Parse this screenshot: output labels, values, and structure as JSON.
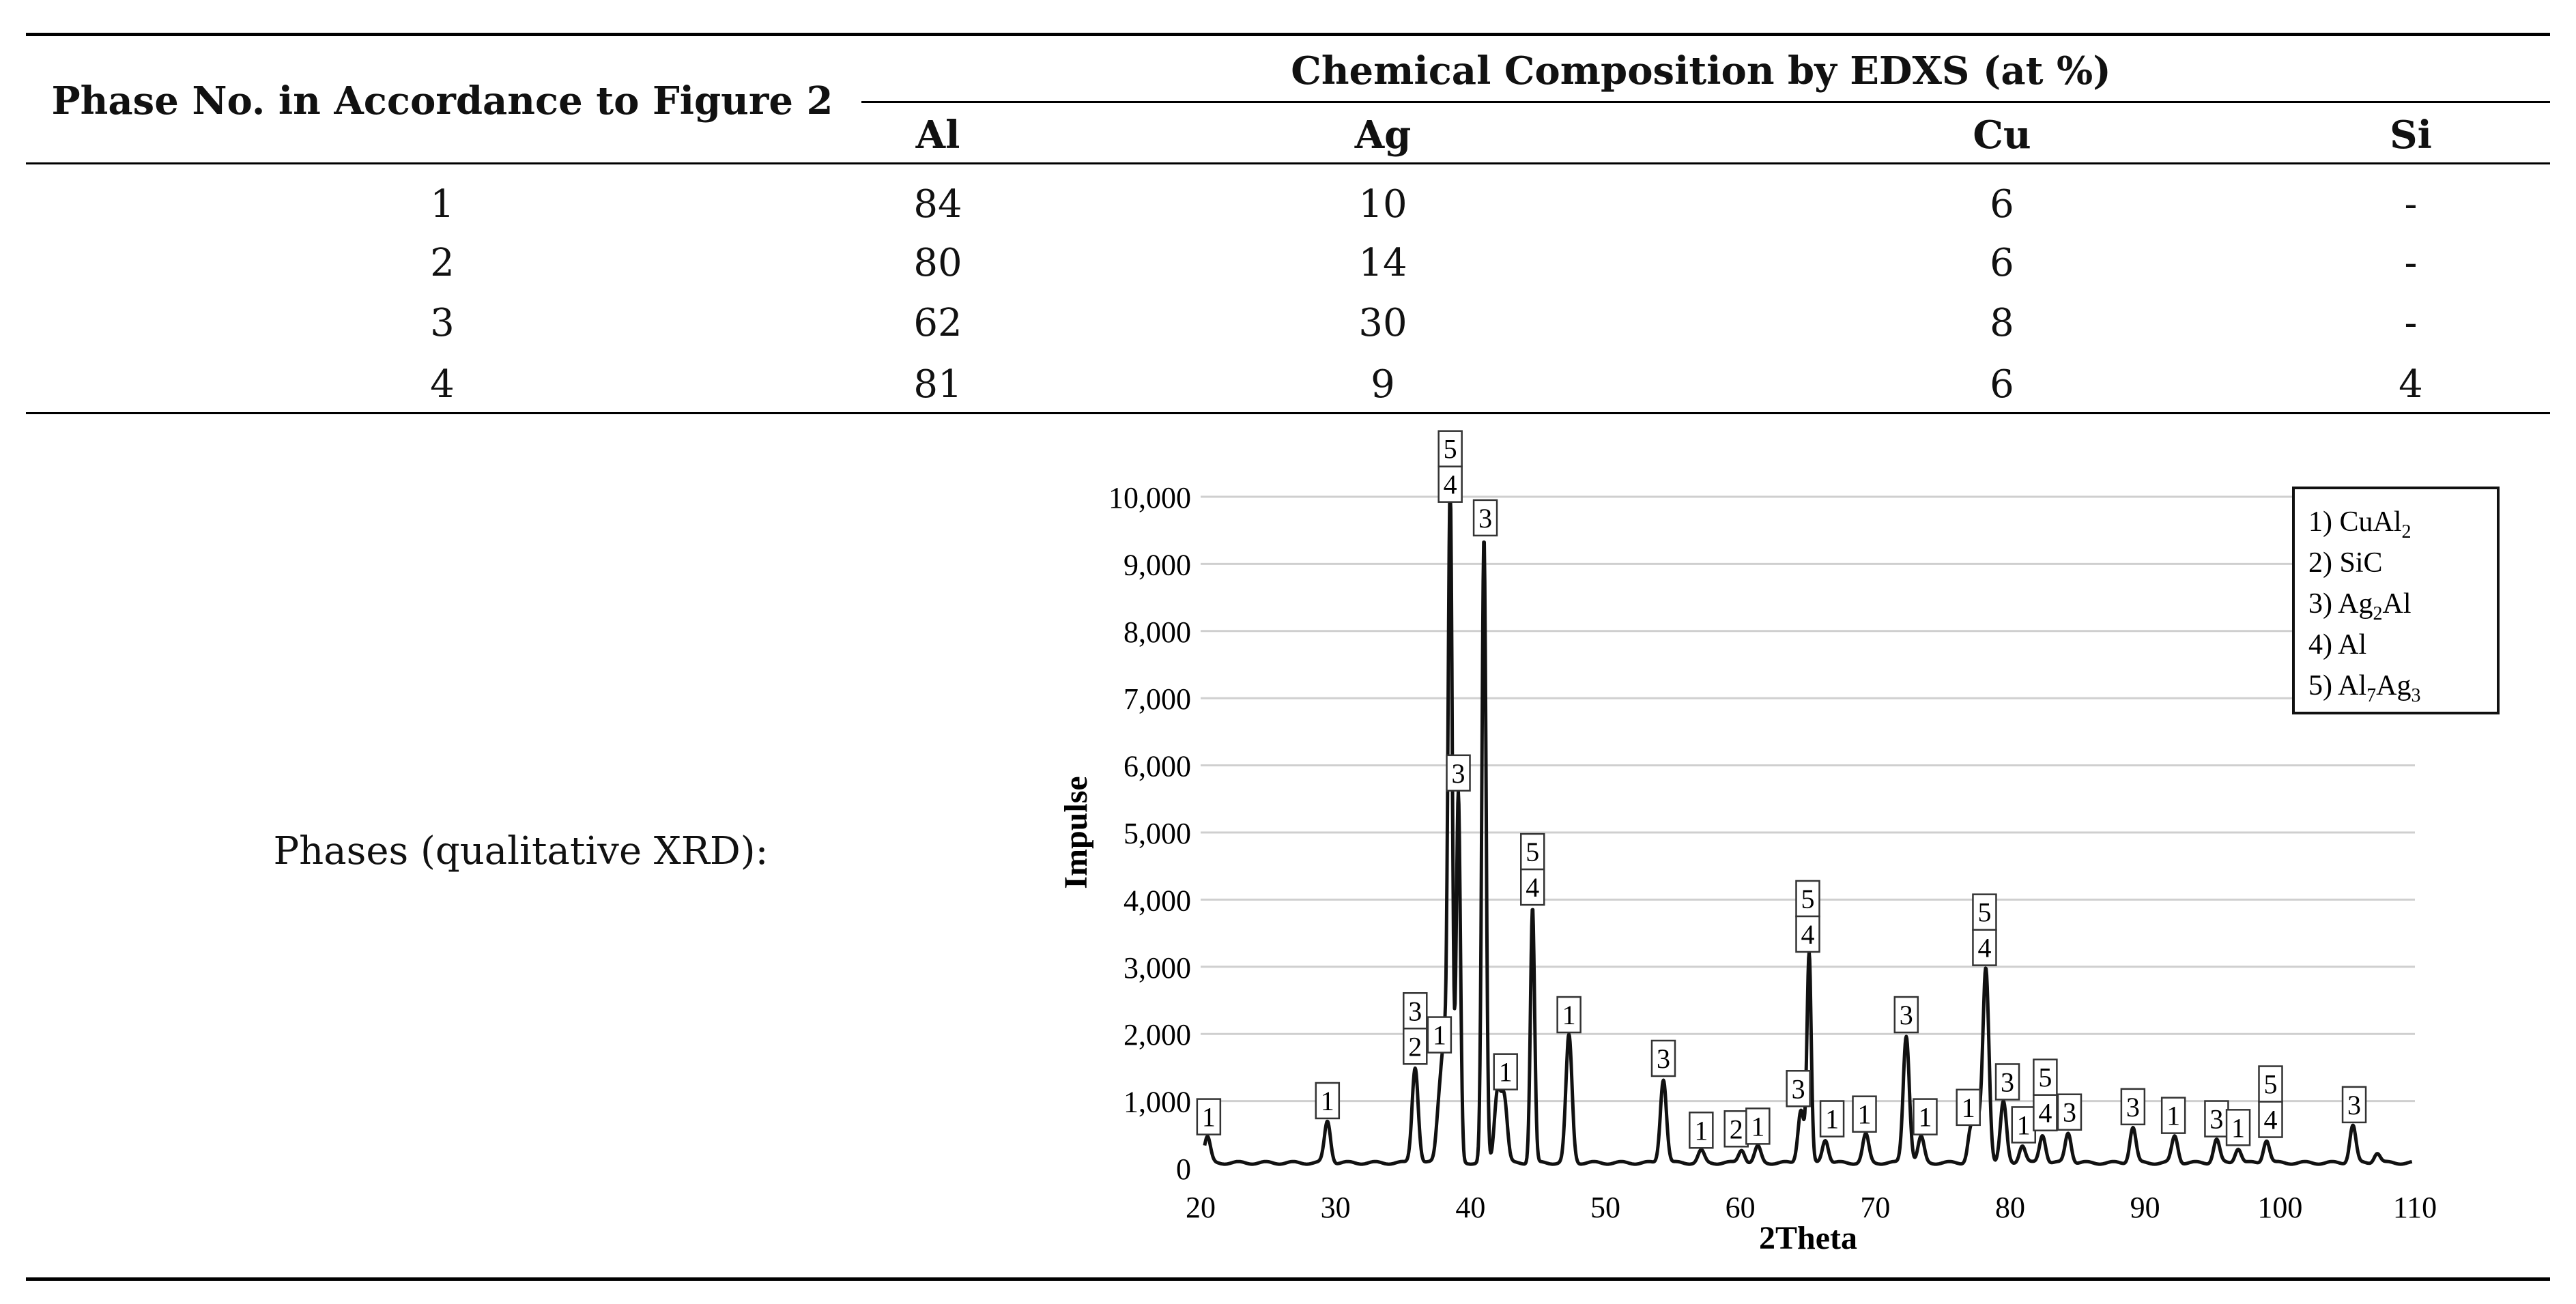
{
  "table": {
    "row_header": "Phase No. in Accordance to Figure 2",
    "group_header": "Chemical Composition by EDXS (at %)",
    "columns": [
      "Al",
      "Ag",
      "Cu",
      "Si"
    ],
    "rows": [
      {
        "phase": "1",
        "al": "84",
        "ag": "10",
        "cu": "6",
        "si": "-"
      },
      {
        "phase": "2",
        "al": "80",
        "ag": "14",
        "cu": "6",
        "si": "-"
      },
      {
        "phase": "3",
        "al": "62",
        "ag": "30",
        "cu": "8",
        "si": "-"
      },
      {
        "phase": "4",
        "al": "81",
        "ag": "9",
        "cu": "6",
        "si": "4"
      }
    ],
    "phases_label": "Phases (qualitative XRD):"
  },
  "chart_data": {
    "type": "line",
    "xlabel": "2Theta",
    "ylabel": "Impulse",
    "xlim": [
      20,
      110
    ],
    "ylim": [
      0,
      10000
    ],
    "x_ticks": [
      "20",
      "30",
      "40",
      "50",
      "60",
      "70",
      "80",
      "90",
      "100",
      "110"
    ],
    "y_ticks": [
      "0",
      "1,000",
      "2,000",
      "3,000",
      "4,000",
      "5,000",
      "6,000",
      "7,000",
      "8,000",
      "9,000",
      "10,000"
    ],
    "grid": "horizontal",
    "legend_position": "top-right",
    "legend": [
      {
        "num": "1)",
        "base": "CuAl",
        "sub": "2",
        "tail": ""
      },
      {
        "num": "2)",
        "base": "SiC",
        "sub": "",
        "tail": ""
      },
      {
        "num": "3)",
        "base": "Ag",
        "sub": "2",
        "tail": "Al"
      },
      {
        "num": "4)",
        "base": "Al",
        "sub": "",
        "tail": ""
      },
      {
        "num": "5)",
        "base": "Al",
        "sub": "7",
        "tail": "Ag",
        "sub2": "3"
      }
    ],
    "baseline": 80,
    "peaks": [
      {
        "x": 20.5,
        "y": 380
      },
      {
        "x": 29.4,
        "y": 620
      },
      {
        "x": 35.9,
        "y": 1430
      },
      {
        "x": 37.7,
        "y": 820
      },
      {
        "x": 38.1,
        "y": 1600
      },
      {
        "x": 38.5,
        "y": 9800
      },
      {
        "x": 39.1,
        "y": 5500
      },
      {
        "x": 41.0,
        "y": 9300
      },
      {
        "x": 42.0,
        "y": 1050
      },
      {
        "x": 42.5,
        "y": 950
      },
      {
        "x": 44.6,
        "y": 3800
      },
      {
        "x": 47.3,
        "y": 1900
      },
      {
        "x": 54.3,
        "y": 1250
      },
      {
        "x": 57.1,
        "y": 180
      },
      {
        "x": 60.1,
        "y": 200
      },
      {
        "x": 61.3,
        "y": 240
      },
      {
        "x": 64.5,
        "y": 800
      },
      {
        "x": 65.1,
        "y": 3100
      },
      {
        "x": 66.3,
        "y": 350
      },
      {
        "x": 69.3,
        "y": 420
      },
      {
        "x": 72.3,
        "y": 1900
      },
      {
        "x": 73.4,
        "y": 380
      },
      {
        "x": 77.1,
        "y": 520
      },
      {
        "x": 77.6,
        "y": 520
      },
      {
        "x": 78.2,
        "y": 2900
      },
      {
        "x": 79.5,
        "y": 900
      },
      {
        "x": 80.9,
        "y": 260
      },
      {
        "x": 82.4,
        "y": 420
      },
      {
        "x": 84.3,
        "y": 450
      },
      {
        "x": 89.1,
        "y": 530
      },
      {
        "x": 92.2,
        "y": 400
      },
      {
        "x": 95.3,
        "y": 350
      },
      {
        "x": 96.9,
        "y": 220
      },
      {
        "x": 99.0,
        "y": 340
      },
      {
        "x": 105.4,
        "y": 560
      },
      {
        "x": 107.2,
        "y": 150
      }
    ],
    "annotations": [
      {
        "x": 20.6,
        "y": 380,
        "labels": [
          "1"
        ]
      },
      {
        "x": 29.4,
        "y": 620,
        "labels": [
          "1"
        ]
      },
      {
        "x": 35.9,
        "y": 1430,
        "labels": [
          "3",
          "2"
        ]
      },
      {
        "x": 37.7,
        "y": 1600,
        "labels": [
          "1"
        ]
      },
      {
        "x": 38.5,
        "y": 9800,
        "labels": [
          "5",
          "4"
        ]
      },
      {
        "x": 39.1,
        "y": 5500,
        "labels": [
          "3"
        ]
      },
      {
        "x": 41.1,
        "y": 9300,
        "labels": [
          "3"
        ]
      },
      {
        "x": 42.6,
        "y": 1050,
        "labels": [
          "1"
        ]
      },
      {
        "x": 44.6,
        "y": 3800,
        "labels": [
          "5",
          "4"
        ]
      },
      {
        "x": 47.3,
        "y": 1900,
        "labels": [
          "1"
        ]
      },
      {
        "x": 54.3,
        "y": 1250,
        "labels": [
          "3"
        ]
      },
      {
        "x": 57.1,
        "y": 180,
        "labels": [
          "1"
        ]
      },
      {
        "x": 59.7,
        "y": 200,
        "labels": [
          "2"
        ]
      },
      {
        "x": 61.3,
        "y": 240,
        "labels": [
          "1"
        ]
      },
      {
        "x": 64.3,
        "y": 800,
        "labels": [
          "3"
        ]
      },
      {
        "x": 65.0,
        "y": 3100,
        "labels": [
          "5",
          "4"
        ]
      },
      {
        "x": 66.8,
        "y": 350,
        "labels": [
          "1"
        ]
      },
      {
        "x": 69.2,
        "y": 420,
        "labels": [
          "1"
        ]
      },
      {
        "x": 72.3,
        "y": 1900,
        "labels": [
          "3"
        ]
      },
      {
        "x": 73.7,
        "y": 380,
        "labels": [
          "1"
        ]
      },
      {
        "x": 76.9,
        "y": 520,
        "labels": [
          "1"
        ]
      },
      {
        "x": 78.1,
        "y": 2900,
        "labels": [
          "5",
          "4"
        ]
      },
      {
        "x": 79.8,
        "y": 900,
        "labels": [
          "3"
        ]
      },
      {
        "x": 81.0,
        "y": 260,
        "labels": [
          "1"
        ]
      },
      {
        "x": 82.6,
        "y": 440,
        "labels": [
          "5",
          "4"
        ]
      },
      {
        "x": 84.4,
        "y": 450,
        "labels": [
          "3"
        ]
      },
      {
        "x": 89.1,
        "y": 530,
        "labels": [
          "3"
        ]
      },
      {
        "x": 92.1,
        "y": 400,
        "labels": [
          "1"
        ]
      },
      {
        "x": 95.3,
        "y": 350,
        "labels": [
          "3"
        ]
      },
      {
        "x": 96.9,
        "y": 220,
        "labels": [
          "1"
        ]
      },
      {
        "x": 99.3,
        "y": 340,
        "labels": [
          "5",
          "4"
        ]
      },
      {
        "x": 105.5,
        "y": 560,
        "labels": [
          "3"
        ]
      }
    ]
  }
}
